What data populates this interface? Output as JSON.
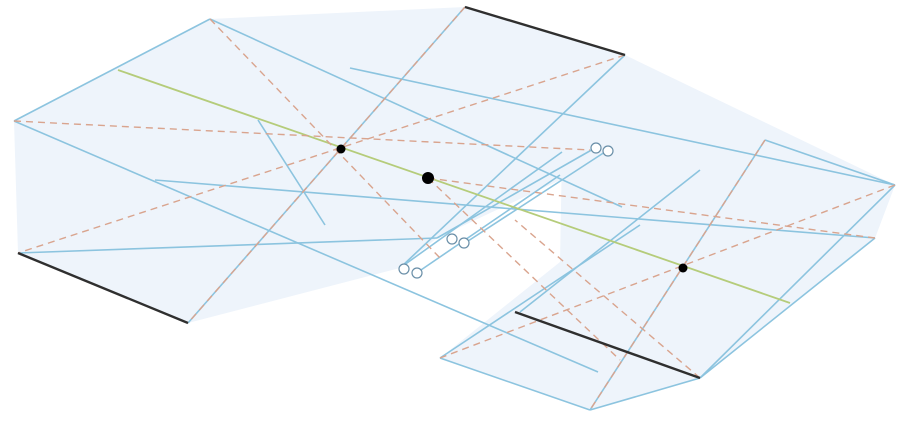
{
  "colors": {
    "background": "#ffffff",
    "panel_fill": "#eef4fb",
    "panel_edge": "#8cc4df",
    "diagonal_dashed": "#d9a48e",
    "axis_line": "#b5cc7a",
    "bold_edge": "#2f2f2f",
    "center_point": "#000000",
    "open_point_stroke": "#6a8fa8",
    "open_point_fill": "#ffffff"
  },
  "icons": {
    "center_point": "filled-dot-icon",
    "open_point": "hollow-circle-icon"
  },
  "labels": []
}
